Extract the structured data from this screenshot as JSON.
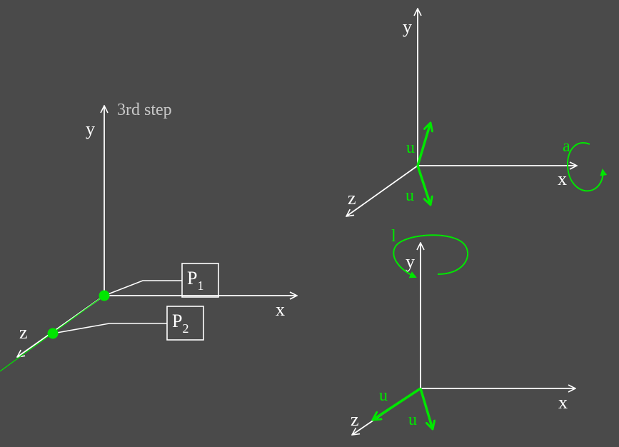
{
  "colors": {
    "background": "#4a4a4a",
    "axis": "#ffffff",
    "highlight": "#00e600",
    "caption": "#c8c8c8"
  },
  "left_diagram": {
    "caption": "3rd step",
    "axis_y": "y",
    "axis_x": "x",
    "axis_z": "z",
    "callout_p1": {
      "base": "P",
      "sub": "1"
    },
    "callout_p2": {
      "base": "P",
      "sub": "2"
    }
  },
  "top_right_diagram": {
    "axis_y": "y",
    "axis_x": "x",
    "axis_z": "z",
    "vector_up_label": "u",
    "vector_down_label": "u",
    "rotation_label": "a"
  },
  "bottom_right_diagram": {
    "axis_y": "y",
    "axis_x": "x",
    "axis_z": "z",
    "vector_z_label": "u",
    "vector_down_label": "u",
    "rotation_label": "l"
  }
}
